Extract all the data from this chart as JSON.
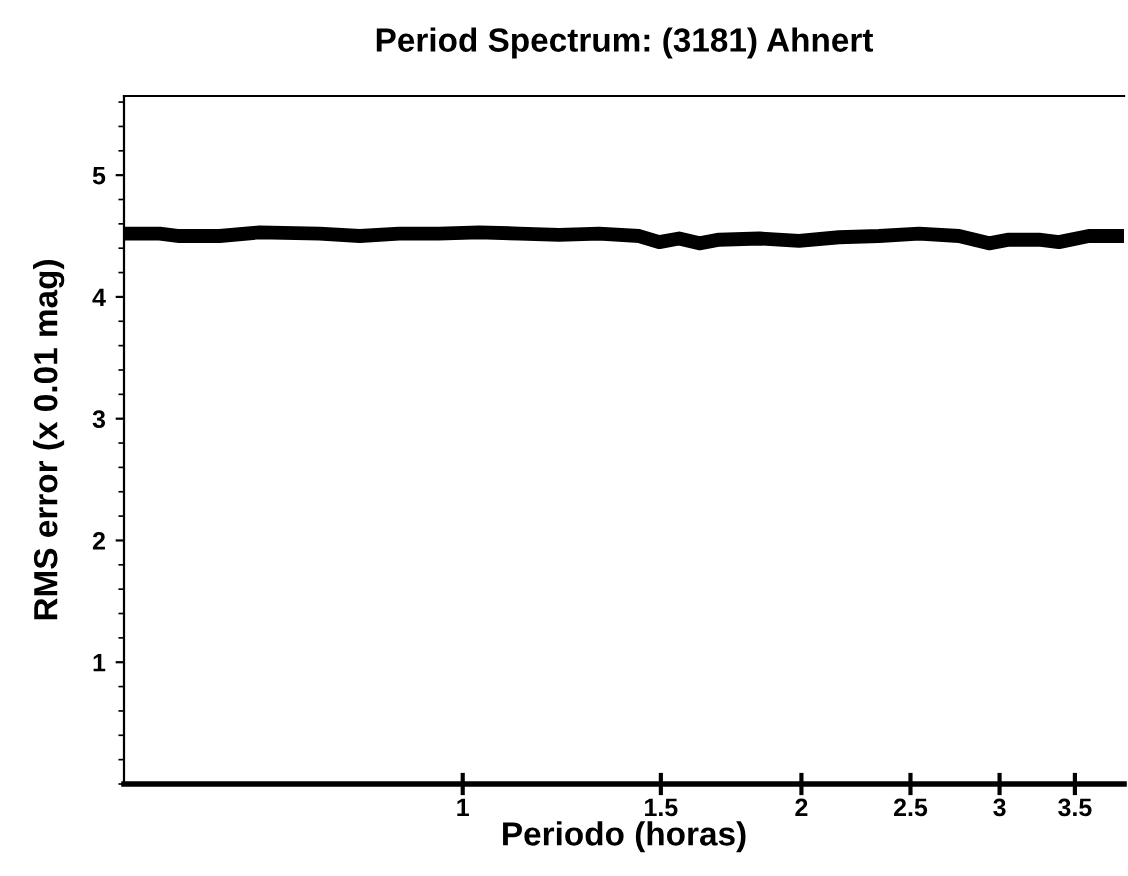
{
  "chart_data": {
    "type": "line",
    "title": "Period Spectrum: (3181) Ahnert",
    "xlabel": "Periodo (horas)",
    "ylabel": "RMS error (x 0.01 mag)",
    "log": "x",
    "xlim": [
      0.5,
      3.87
    ],
    "xticks": [
      1,
      1.5,
      2,
      2.5,
      3,
      3.5
    ],
    "ylim": [
      0,
      5.65
    ],
    "yticks": [
      1,
      2,
      3,
      4,
      5
    ],
    "grid": false,
    "legend": false,
    "marker": "none",
    "line_style": "solid",
    "x": [
      0.5,
      0.538,
      0.56,
      0.608,
      0.66,
      0.746,
      0.81,
      0.878,
      0.953,
      1.034,
      1.123,
      1.218,
      1.322,
      1.435,
      1.495,
      1.557,
      1.623,
      1.69,
      1.834,
      1.99,
      2.16,
      2.344,
      2.544,
      2.761,
      2.936,
      3.058,
      3.252,
      3.387,
      3.601,
      3.87
    ],
    "series": [
      {
        "color": "#000000",
        "values": [
          4.52,
          4.52,
          4.5,
          4.5,
          4.53,
          4.52,
          4.5,
          4.52,
          4.52,
          4.53,
          4.52,
          4.51,
          4.52,
          4.5,
          4.45,
          4.48,
          4.44,
          4.47,
          4.48,
          4.46,
          4.49,
          4.5,
          4.52,
          4.5,
          4.44,
          4.47,
          4.47,
          4.45,
          4.5,
          4.5
        ]
      }
    ]
  }
}
